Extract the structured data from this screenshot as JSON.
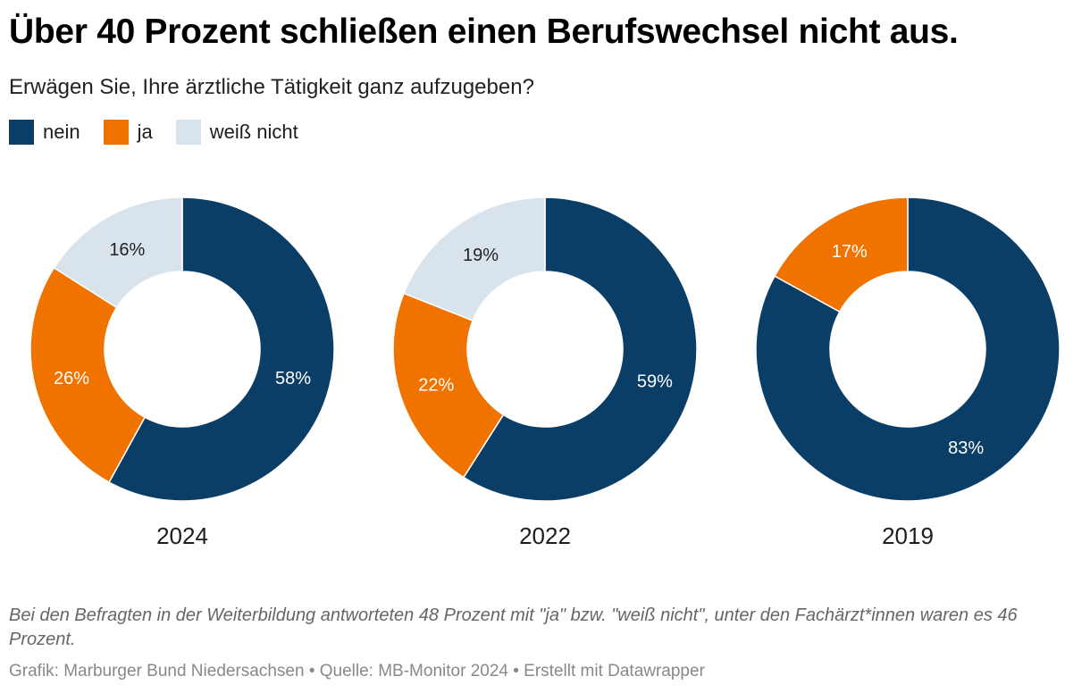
{
  "title": "Über 40 Prozent schließen einen Berufswechsel nicht aus.",
  "subtitle": "Erwägen Sie, Ihre ärztliche Tätigkeit ganz aufzugeben?",
  "legend": [
    {
      "label": "nein",
      "color": "#0b3e66"
    },
    {
      "label": "ja",
      "color": "#f07300"
    },
    {
      "label": "weiß nicht",
      "color": "#d9e3ec"
    }
  ],
  "chart_data": {
    "type": "pie",
    "variant": "donut",
    "categories": [
      "nein",
      "ja",
      "weiß nicht"
    ],
    "charts": [
      {
        "label": "2024",
        "values": [
          58,
          26,
          16
        ],
        "data_labels": [
          "58%",
          "26%",
          "16%"
        ]
      },
      {
        "label": "2022",
        "values": [
          59,
          22,
          19
        ],
        "data_labels": [
          "59%",
          "22%",
          "19%"
        ]
      },
      {
        "label": "2019",
        "values": [
          83,
          17,
          0
        ],
        "data_labels": [
          "83%",
          "17%",
          ""
        ]
      }
    ],
    "legend_position": "top-left"
  },
  "note": "Bei den Befragten in der Weiterbildung antworteten 48 Prozent mit \"ja\" bzw. \"weiß nicht\", unter den Fachärzt*innen waren es 46 Prozent.",
  "footer": "Grafik: Marburger Bund Niedersachsen • Quelle: MB-Monitor 2024 • Erstellt mit Datawrapper"
}
